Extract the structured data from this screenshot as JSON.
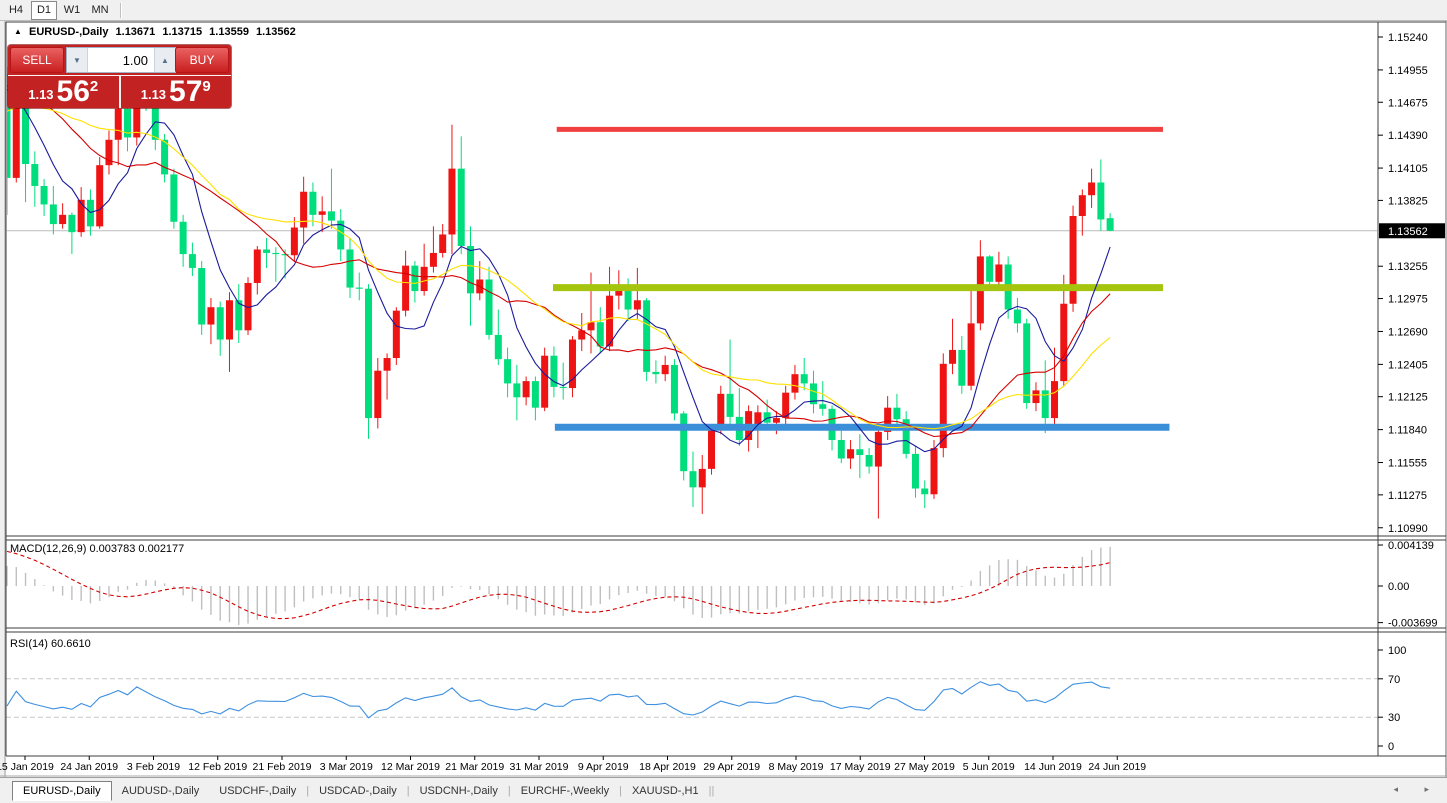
{
  "toolbar": {
    "timeframes": [
      {
        "label": "H4",
        "active": false
      },
      {
        "label": "D1",
        "active": true
      },
      {
        "label": "W1",
        "active": false
      },
      {
        "label": "MN",
        "active": false
      }
    ]
  },
  "chart_window": {
    "title": {
      "marker": "▲",
      "symbol": "EURUSD-,Daily",
      "open": "1.13671",
      "high": "1.13715",
      "low": "1.13559",
      "close": "1.13562"
    },
    "trade_panel": {
      "sell_label": "SELL",
      "buy_label": "BUY",
      "volume": "1.00",
      "spinner_down_icon": "▼",
      "spinner_up_icon": "▲",
      "sell_price": {
        "prefix": "1.13",
        "big": "56",
        "sup": "2"
      },
      "buy_price": {
        "prefix": "1.13",
        "big": "57",
        "sup": "9"
      }
    },
    "price_axis": {
      "tick_labels": [
        "1.15240",
        "1.14955",
        "1.14675",
        "1.14390",
        "1.14105",
        "1.13825",
        "1.13255",
        "1.12975",
        "1.12690",
        "1.12405",
        "1.12125",
        "1.11840",
        "1.11555",
        "1.11275",
        "1.10990"
      ],
      "current_label": "1.13562"
    },
    "macd_pane": {
      "label": "MACD(12,26,9)",
      "value_main": "0.003783",
      "value_signal": "0.002177",
      "axis_labels": [
        "0.004139",
        "0.00",
        "-0.003699"
      ]
    },
    "rsi_pane": {
      "label": "RSI(14)",
      "value": "60.6610",
      "axis_labels": [
        "100",
        "70",
        "30",
        "0"
      ]
    },
    "date_axis": [
      "15 Jan 2019",
      "24 Jan 2019",
      "3 Feb 2019",
      "12 Feb 2019",
      "21 Feb 2019",
      "3 Mar 2019",
      "12 Mar 2019",
      "21 Mar 2019",
      "31 Mar 2019",
      "9 Apr 2019",
      "18 Apr 2019",
      "29 Apr 2019",
      "8 May 2019",
      "17 May 2019",
      "27 May 2019",
      "5 Jun 2019",
      "14 Jun 2019",
      "24 Jun 2019"
    ]
  },
  "tabs": {
    "items": [
      {
        "label": "EURUSD-,Daily",
        "active": true
      },
      {
        "label": "AUDUSD-,Daily",
        "active": false
      },
      {
        "label": "USDCHF-,Daily",
        "active": false
      },
      {
        "label": "USDCAD-,Daily",
        "active": false
      },
      {
        "label": "USDCNH-,Daily",
        "active": false
      },
      {
        "label": "EURCHF-,Weekly",
        "active": false
      },
      {
        "label": "XAUUSD-,H1",
        "active": false
      }
    ],
    "scroll_icons": "◂ ▸"
  },
  "chart_data": {
    "type": "candlestick",
    "symbol": "EURUSD-",
    "timeframe": "Daily",
    "current_price": 1.13562,
    "ohlc_display": [
      1.13671,
      1.13715,
      1.13559,
      1.13562
    ],
    "y_axis": {
      "price_top": 1.1537,
      "price_bottom": 1.1091,
      "ticks": [
        1.1524,
        1.14955,
        1.14675,
        1.1439,
        1.14105,
        1.13825,
        1.13255,
        1.12975,
        1.1269,
        1.12405,
        1.12125,
        1.1184,
        1.11555,
        1.11275,
        1.1099
      ]
    },
    "colors": {
      "up": "#EE1414",
      "down": "#00DD7C",
      "ma_fast": "#1A1A9C",
      "ma_mid": "#D40000",
      "ma_slow": "#FFE000",
      "current_line": "#BBBBBB",
      "background": "#FFFFFF"
    },
    "moving_averages": [
      {
        "period": 7,
        "color": "#1A1A9C"
      },
      {
        "period": 16,
        "color": "#D40000"
      },
      {
        "period": 24,
        "color": "#FFE000"
      }
    ],
    "hlines": [
      {
        "name": "resistance-red",
        "price": 1.1444,
        "from_index": 59.3,
        "to_index": 124.7,
        "color": "#F04040",
        "thickness": 5
      },
      {
        "name": "resistance-olive",
        "price": 1.1307,
        "from_index": 58.9,
        "to_index": 124.7,
        "color": "#A4C40D",
        "thickness": 7
      },
      {
        "name": "support-blue",
        "price": 1.1186,
        "from_index": 59.1,
        "to_index": 125.4,
        "color": "#3A8FD8",
        "thickness": 7
      }
    ],
    "macd": {
      "fast": 12,
      "slow": 26,
      "signal": 9,
      "axis_max": 0.004139,
      "axis_min": -0.003699,
      "hist_color": "#BFBFBF",
      "signal_color": "#D40000",
      "display_main": 0.003783,
      "display_signal": 0.002177
    },
    "rsi": {
      "period": 14,
      "color": "#3E90E0",
      "levels": [
        70,
        30
      ],
      "current": 60.661
    },
    "warmup_closes": [
      1.1325,
      1.134,
      1.1332,
      1.135,
      1.1365,
      1.1358,
      1.1378,
      1.139,
      1.1385,
      1.1402,
      1.142,
      1.1412,
      1.1432,
      1.1448,
      1.144,
      1.1458,
      1.147,
      1.1462,
      1.148,
      1.1492,
      1.1485,
      1.1498,
      1.1508,
      1.15,
      1.1512,
      1.1505,
      1.1495,
      1.1488,
      1.1478,
      1.147
    ],
    "candles": [
      [
        1.1492,
        1.1498,
        1.137,
        1.1402
      ],
      [
        1.1402,
        1.1482,
        1.1398,
        1.1473
      ],
      [
        1.1473,
        1.149,
        1.1381,
        1.1414
      ],
      [
        1.1414,
        1.1425,
        1.1377,
        1.1395
      ],
      [
        1.1395,
        1.1401,
        1.1369,
        1.1379
      ],
      [
        1.1379,
        1.1395,
        1.1353,
        1.1362
      ],
      [
        1.1362,
        1.138,
        1.1358,
        1.137
      ],
      [
        1.137,
        1.1372,
        1.1336,
        1.1355
      ],
      [
        1.1355,
        1.1394,
        1.1351,
        1.1383
      ],
      [
        1.1383,
        1.1392,
        1.1352,
        1.136
      ],
      [
        1.136,
        1.142,
        1.1358,
        1.1413
      ],
      [
        1.1413,
        1.1443,
        1.1405,
        1.1435
      ],
      [
        1.1435,
        1.1468,
        1.1413,
        1.1462
      ],
      [
        1.1462,
        1.147,
        1.1425,
        1.1437
      ],
      [
        1.1437,
        1.1512,
        1.143,
        1.1502
      ],
      [
        1.1502,
        1.1515,
        1.146,
        1.147
      ],
      [
        1.147,
        1.1478,
        1.1426,
        1.1435
      ],
      [
        1.1435,
        1.144,
        1.1398,
        1.1405
      ],
      [
        1.1405,
        1.141,
        1.1358,
        1.1364
      ],
      [
        1.1364,
        1.137,
        1.1325,
        1.1336
      ],
      [
        1.1336,
        1.1346,
        1.1317,
        1.1324
      ],
      [
        1.1324,
        1.133,
        1.1266,
        1.1275
      ],
      [
        1.1275,
        1.1298,
        1.1258,
        1.129
      ],
      [
        1.129,
        1.1295,
        1.1248,
        1.1262
      ],
      [
        1.1262,
        1.1303,
        1.1234,
        1.1296
      ],
      [
        1.1296,
        1.131,
        1.1259,
        1.127
      ],
      [
        1.127,
        1.1316,
        1.1266,
        1.1311
      ],
      [
        1.1311,
        1.1343,
        1.1301,
        1.134
      ],
      [
        1.134,
        1.135,
        1.1324,
        1.1337
      ],
      [
        1.1337,
        1.1342,
        1.1312,
        1.1336
      ],
      [
        1.1336,
        1.134,
        1.1315,
        1.1335
      ],
      [
        1.1335,
        1.1368,
        1.133,
        1.1359
      ],
      [
        1.1359,
        1.1403,
        1.1345,
        1.139
      ],
      [
        1.139,
        1.1398,
        1.136,
        1.137
      ],
      [
        1.137,
        1.1386,
        1.1355,
        1.1373
      ],
      [
        1.1373,
        1.141,
        1.1358,
        1.1365
      ],
      [
        1.1365,
        1.1375,
        1.133,
        1.134
      ],
      [
        1.134,
        1.135,
        1.1298,
        1.1307
      ],
      [
        1.1307,
        1.132,
        1.1296,
        1.1306
      ],
      [
        1.1306,
        1.131,
        1.1176,
        1.1194
      ],
      [
        1.1194,
        1.1246,
        1.1185,
        1.1235
      ],
      [
        1.1235,
        1.125,
        1.121,
        1.1246
      ],
      [
        1.1246,
        1.129,
        1.124,
        1.1287
      ],
      [
        1.1287,
        1.1339,
        1.1282,
        1.1326
      ],
      [
        1.1326,
        1.133,
        1.1294,
        1.1304
      ],
      [
        1.1304,
        1.1345,
        1.13,
        1.1325
      ],
      [
        1.1325,
        1.136,
        1.132,
        1.1337
      ],
      [
        1.1337,
        1.1362,
        1.1333,
        1.1353
      ],
      [
        1.1353,
        1.1448,
        1.1336,
        1.141
      ],
      [
        1.141,
        1.1438,
        1.1336,
        1.1343
      ],
      [
        1.1343,
        1.136,
        1.1274,
        1.1302
      ],
      [
        1.1302,
        1.133,
        1.1296,
        1.1314
      ],
      [
        1.1314,
        1.1325,
        1.1262,
        1.1266
      ],
      [
        1.1266,
        1.1288,
        1.124,
        1.1245
      ],
      [
        1.1245,
        1.1255,
        1.1212,
        1.1224
      ],
      [
        1.1224,
        1.124,
        1.1192,
        1.1212
      ],
      [
        1.1212,
        1.123,
        1.1205,
        1.1226
      ],
      [
        1.1226,
        1.123,
        1.1192,
        1.1203
      ],
      [
        1.1203,
        1.1255,
        1.12,
        1.1248
      ],
      [
        1.1248,
        1.1256,
        1.1212,
        1.1221
      ],
      [
        1.1221,
        1.1242,
        1.121,
        1.122
      ],
      [
        1.122,
        1.1265,
        1.1212,
        1.1262
      ],
      [
        1.1262,
        1.1285,
        1.1252,
        1.127
      ],
      [
        1.127,
        1.132,
        1.125,
        1.1277
      ],
      [
        1.1277,
        1.129,
        1.125,
        1.1256
      ],
      [
        1.1256,
        1.1325,
        1.1252,
        1.13
      ],
      [
        1.13,
        1.1322,
        1.1288,
        1.1305
      ],
      [
        1.1305,
        1.1315,
        1.1278,
        1.1288
      ],
      [
        1.1288,
        1.1324,
        1.128,
        1.1296
      ],
      [
        1.1296,
        1.1298,
        1.1226,
        1.1234
      ],
      [
        1.1234,
        1.1244,
        1.1224,
        1.1232
      ],
      [
        1.1232,
        1.1248,
        1.1226,
        1.124
      ],
      [
        1.124,
        1.1245,
        1.1192,
        1.1198
      ],
      [
        1.1198,
        1.12,
        1.114,
        1.1148
      ],
      [
        1.1148,
        1.1165,
        1.1117,
        1.1134
      ],
      [
        1.1134,
        1.1162,
        1.1111,
        1.115
      ],
      [
        1.115,
        1.1188,
        1.1145,
        1.1184
      ],
      [
        1.1184,
        1.1222,
        1.118,
        1.1215
      ],
      [
        1.1215,
        1.1262,
        1.1187,
        1.1195
      ],
      [
        1.1195,
        1.122,
        1.117,
        1.1175
      ],
      [
        1.1175,
        1.1205,
        1.1165,
        1.12
      ],
      [
        1.1185,
        1.1205,
        1.1168,
        1.1199
      ],
      [
        1.1199,
        1.121,
        1.1184,
        1.119
      ],
      [
        1.119,
        1.12,
        1.118,
        1.1194
      ],
      [
        1.1194,
        1.1222,
        1.1185,
        1.1216
      ],
      [
        1.1216,
        1.124,
        1.121,
        1.1232
      ],
      [
        1.1232,
        1.1246,
        1.1218,
        1.1224
      ],
      [
        1.1224,
        1.1235,
        1.1198,
        1.1206
      ],
      [
        1.1206,
        1.1226,
        1.1196,
        1.1202
      ],
      [
        1.1202,
        1.1205,
        1.1166,
        1.1175
      ],
      [
        1.1175,
        1.1185,
        1.1155,
        1.1159
      ],
      [
        1.1159,
        1.1175,
        1.115,
        1.1167
      ],
      [
        1.1167,
        1.118,
        1.1142,
        1.1162
      ],
      [
        1.1162,
        1.1168,
        1.1146,
        1.1152
      ],
      [
        1.1152,
        1.1188,
        1.1107,
        1.1182
      ],
      [
        1.1182,
        1.1213,
        1.1175,
        1.1203
      ],
      [
        1.1203,
        1.1215,
        1.1186,
        1.1193
      ],
      [
        1.1193,
        1.12,
        1.1159,
        1.1163
      ],
      [
        1.1163,
        1.117,
        1.1125,
        1.1133
      ],
      [
        1.1133,
        1.114,
        1.1116,
        1.1128
      ],
      [
        1.1128,
        1.1175,
        1.1124,
        1.1168
      ],
      [
        1.1168,
        1.125,
        1.116,
        1.1241
      ],
      [
        1.1241,
        1.128,
        1.1232,
        1.1253
      ],
      [
        1.1253,
        1.1265,
        1.1215,
        1.1222
      ],
      [
        1.1222,
        1.1309,
        1.1218,
        1.1276
      ],
      [
        1.1276,
        1.1348,
        1.127,
        1.1334
      ],
      [
        1.1334,
        1.1335,
        1.1306,
        1.1312
      ],
      [
        1.1312,
        1.1338,
        1.1305,
        1.1327
      ],
      [
        1.1327,
        1.1334,
        1.128,
        1.1288
      ],
      [
        1.1288,
        1.1298,
        1.1268,
        1.1276
      ],
      [
        1.1276,
        1.128,
        1.1202,
        1.1207
      ],
      [
        1.1207,
        1.1225,
        1.12,
        1.1218
      ],
      [
        1.1218,
        1.1244,
        1.1181,
        1.1194
      ],
      [
        1.1194,
        1.1255,
        1.1186,
        1.1226
      ],
      [
        1.1226,
        1.1318,
        1.1222,
        1.1293
      ],
      [
        1.1293,
        1.1378,
        1.1286,
        1.1369
      ],
      [
        1.1369,
        1.1392,
        1.1352,
        1.1387
      ],
      [
        1.1387,
        1.141,
        1.1376,
        1.1398
      ],
      [
        1.1398,
        1.1418,
        1.1356,
        1.1366
      ],
      [
        1.13671,
        1.13715,
        1.13559,
        1.13562
      ]
    ]
  }
}
